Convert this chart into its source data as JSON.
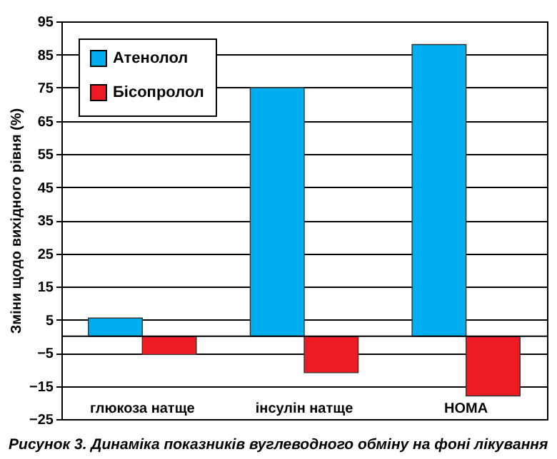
{
  "chart_data": {
    "type": "bar",
    "title": "Рисунок 3. Динаміка показників вуглеводного обміну на фоні лікування",
    "ylabel": "Зміни щодо вихідного рівня (%)",
    "categories": [
      "глюкоза натще",
      "інсулін натще",
      "HOMA"
    ],
    "series": [
      {
        "name": "Атенолол",
        "color": "#00aeef",
        "values": [
          5.5,
          75,
          88
        ]
      },
      {
        "name": "Бісопролол",
        "color": "#ed1c24",
        "values": [
          -5.5,
          -11,
          -18
        ]
      }
    ],
    "ylim": [
      -25,
      95
    ],
    "yticks": [
      -25,
      -15,
      -5,
      5,
      15,
      25,
      35,
      45,
      55,
      65,
      75,
      85,
      95
    ],
    "grid": "y",
    "legend": "top left",
    "ref_lines": [
      {
        "axis": "y",
        "value": 0,
        "label": null
      }
    ]
  }
}
